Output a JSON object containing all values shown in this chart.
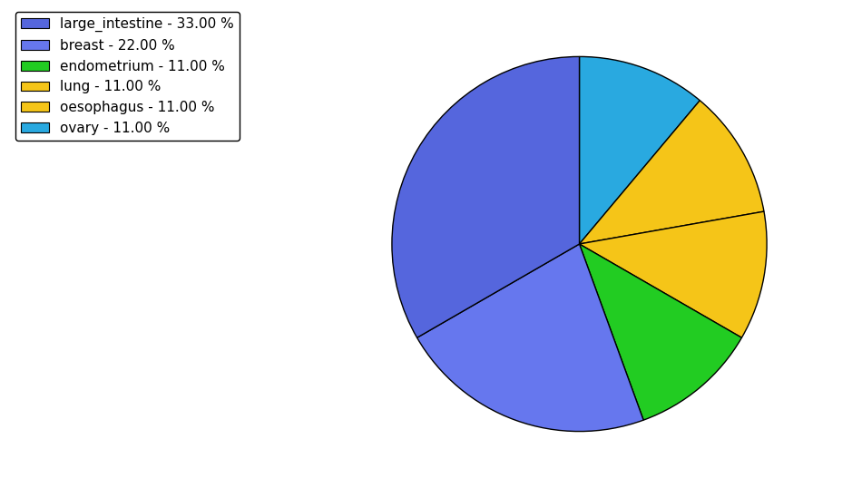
{
  "labels": [
    "ovary",
    "lung",
    "oesophagus",
    "endometrium",
    "breast",
    "large_intestine"
  ],
  "values": [
    11,
    11,
    11,
    11,
    22,
    33
  ],
  "colors": [
    "#29a9e0",
    "#f5c518",
    "#f5c518",
    "#22cc22",
    "#6677ee",
    "#5566dd"
  ],
  "legend_colors": [
    "#5566dd",
    "#6677ee",
    "#22cc22",
    "#f5c518",
    "#f5c518",
    "#29a9e0"
  ],
  "legend_labels": [
    "large_intestine - 33.00 %",
    "breast - 22.00 %",
    "endometrium - 11.00 %",
    "lung - 11.00 %",
    "oesophagus - 11.00 %",
    "ovary - 11.00 %"
  ],
  "startangle": 90,
  "counterclock": false,
  "figsize": [
    9.39,
    5.38
  ],
  "dpi": 100
}
